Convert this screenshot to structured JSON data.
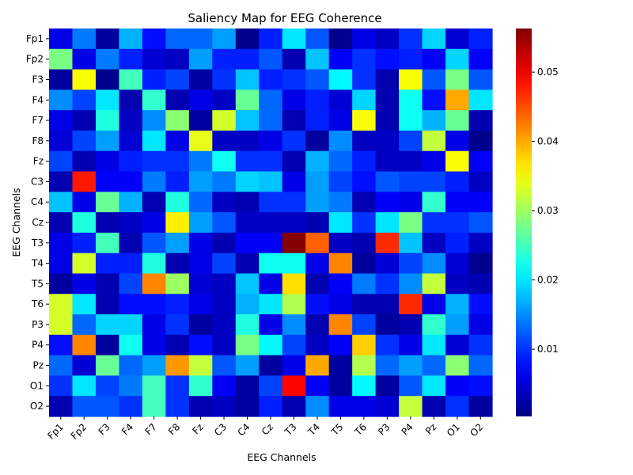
{
  "chart_data": {
    "type": "heatmap",
    "title": "Saliency Map for EEG Coherence",
    "xlabel": "EEG Channels",
    "ylabel": "EEG Channels",
    "x_categories": [
      "Fp1",
      "Fp2",
      "F3",
      "F4",
      "F7",
      "F8",
      "Fz",
      "C3",
      "C4",
      "Cz",
      "T3",
      "T4",
      "T5",
      "T6",
      "P3",
      "P4",
      "Pz",
      "O1",
      "O2"
    ],
    "y_categories": [
      "Fp1",
      "Fp2",
      "F3",
      "F4",
      "F7",
      "F8",
      "Fz",
      "C3",
      "C4",
      "Cz",
      "T3",
      "T4",
      "T5",
      "T6",
      "P3",
      "P4",
      "Pz",
      "O1",
      "O2"
    ],
    "colormap": "jet",
    "color_range": [
      0.0003,
      0.0563
    ],
    "colorbar_ticks": [
      0.01,
      0.02,
      0.03,
      0.04,
      0.05
    ],
    "colorbar_tick_labels": [
      "0.01",
      "0.02",
      "0.03",
      "0.04",
      "0.05"
    ],
    "values": [
      [
        0.006,
        0.014,
        0.002,
        0.017,
        0.008,
        0.013,
        0.013,
        0.016,
        0.001,
        0.009,
        0.02,
        0.012,
        0.001,
        0.006,
        0.004,
        0.01,
        0.019,
        0.005,
        0.009
      ],
      [
        0.028,
        0.006,
        0.014,
        0.009,
        0.005,
        0.004,
        0.016,
        0.009,
        0.009,
        0.012,
        0.003,
        0.018,
        0.007,
        0.01,
        0.008,
        0.009,
        0.007,
        0.019,
        0.007
      ],
      [
        0.002,
        0.035,
        0.001,
        0.025,
        0.009,
        0.011,
        0.002,
        0.01,
        0.018,
        0.009,
        0.01,
        0.012,
        0.021,
        0.01,
        0.003,
        0.035,
        0.012,
        0.028,
        0.012
      ],
      [
        0.015,
        0.011,
        0.02,
        0.003,
        0.024,
        0.003,
        0.006,
        0.004,
        0.027,
        0.013,
        0.006,
        0.009,
        0.005,
        0.019,
        0.003,
        0.022,
        0.008,
        0.04,
        0.02
      ],
      [
        0.006,
        0.003,
        0.023,
        0.004,
        0.015,
        0.029,
        0.002,
        0.033,
        0.018,
        0.013,
        0.003,
        0.009,
        0.006,
        0.035,
        0.003,
        0.022,
        0.017,
        0.027,
        0.003
      ],
      [
        0.005,
        0.011,
        0.016,
        0.005,
        0.02,
        0.006,
        0.034,
        0.004,
        0.004,
        0.006,
        0.01,
        0.002,
        0.015,
        0.004,
        0.004,
        0.011,
        0.032,
        0.006,
        0.001
      ],
      [
        0.011,
        0.003,
        0.006,
        0.009,
        0.01,
        0.01,
        0.014,
        0.022,
        0.01,
        0.01,
        0.003,
        0.017,
        0.013,
        0.009,
        0.004,
        0.004,
        0.006,
        0.035,
        0.007
      ],
      [
        0.003,
        0.048,
        0.007,
        0.007,
        0.014,
        0.009,
        0.016,
        0.014,
        0.019,
        0.018,
        0.006,
        0.016,
        0.011,
        0.008,
        0.012,
        0.011,
        0.011,
        0.009,
        0.004
      ],
      [
        0.018,
        0.006,
        0.027,
        0.017,
        0.003,
        0.023,
        0.013,
        0.004,
        0.003,
        0.01,
        0.01,
        0.016,
        0.014,
        0.003,
        0.007,
        0.006,
        0.024,
        0.007,
        0.007
      ],
      [
        0.003,
        0.023,
        0.003,
        0.004,
        0.006,
        0.036,
        0.016,
        0.012,
        0.004,
        0.004,
        0.004,
        0.003,
        0.02,
        0.01,
        0.02,
        0.028,
        0.01,
        0.01,
        0.012
      ],
      [
        0.006,
        0.009,
        0.025,
        0.003,
        0.012,
        0.016,
        0.006,
        0.003,
        0.007,
        0.007,
        0.056,
        0.044,
        0.004,
        0.003,
        0.047,
        0.018,
        0.004,
        0.009,
        0.004
      ],
      [
        0.006,
        0.033,
        0.009,
        0.009,
        0.023,
        0.003,
        0.006,
        0.011,
        0.003,
        0.022,
        0.022,
        0.006,
        0.042,
        0.002,
        0.005,
        0.011,
        0.015,
        0.005,
        0.001
      ],
      [
        0.002,
        0.006,
        0.003,
        0.011,
        0.042,
        0.03,
        0.005,
        0.004,
        0.018,
        0.006,
        0.037,
        0.003,
        0.007,
        0.014,
        0.01,
        0.015,
        0.032,
        0.004,
        0.003
      ],
      [
        0.033,
        0.02,
        0.003,
        0.008,
        0.008,
        0.009,
        0.006,
        0.004,
        0.017,
        0.02,
        0.031,
        0.008,
        0.006,
        0.003,
        0.003,
        0.047,
        0.006,
        0.017,
        0.008
      ],
      [
        0.033,
        0.013,
        0.019,
        0.019,
        0.006,
        0.01,
        0.002,
        0.004,
        0.023,
        0.006,
        0.015,
        0.003,
        0.042,
        0.011,
        0.002,
        0.003,
        0.024,
        0.016,
        0.006
      ],
      [
        0.008,
        0.042,
        0.002,
        0.022,
        0.006,
        0.003,
        0.008,
        0.004,
        0.028,
        0.021,
        0.011,
        0.004,
        0.007,
        0.038,
        0.01,
        0.006,
        0.02,
        0.005,
        0.01
      ],
      [
        0.013,
        0.005,
        0.027,
        0.013,
        0.016,
        0.041,
        0.032,
        0.012,
        0.016,
        0.002,
        0.006,
        0.04,
        0.002,
        0.031,
        0.013,
        0.016,
        0.013,
        0.029,
        0.013
      ],
      [
        0.01,
        0.02,
        0.011,
        0.014,
        0.025,
        0.01,
        0.024,
        0.007,
        0.002,
        0.011,
        0.049,
        0.007,
        0.002,
        0.021,
        0.002,
        0.012,
        0.02,
        0.007,
        0.008
      ],
      [
        0.003,
        0.012,
        0.012,
        0.01,
        0.025,
        0.01,
        0.003,
        0.004,
        0.002,
        0.009,
        0.003,
        0.015,
        0.006,
        0.006,
        0.005,
        0.032,
        0.003,
        0.01,
        0.002
      ]
    ]
  }
}
